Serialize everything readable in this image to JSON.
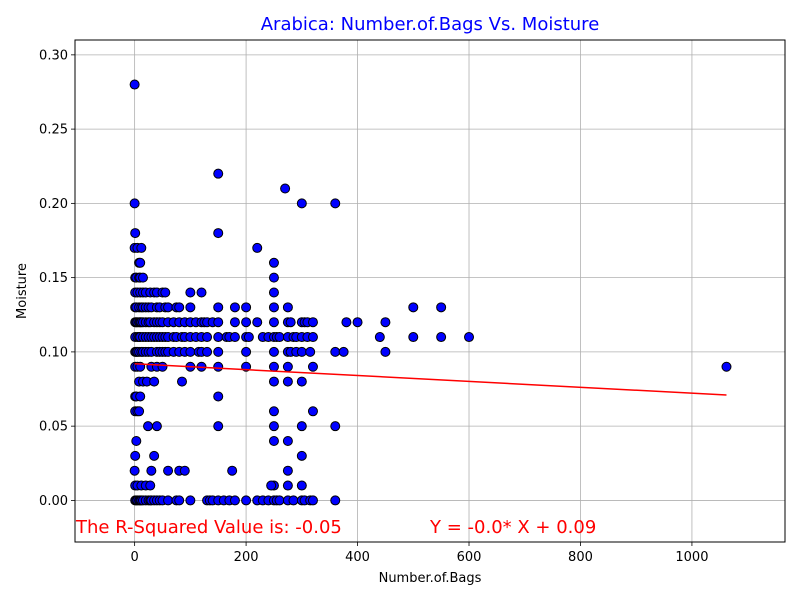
{
  "chart_data": {
    "type": "scatter",
    "title": "Arabica: Number.of.Bags Vs. Moisture",
    "xlabel": "Number.of.Bags",
    "ylabel": "Moisture",
    "xlim": [
      -107,
      1167
    ],
    "ylim": [
      -0.028,
      0.31
    ],
    "xticks": [
      0,
      200,
      400,
      600,
      800,
      1000
    ],
    "yticks": [
      0.0,
      0.05,
      0.1,
      0.15,
      0.2,
      0.25,
      0.3
    ],
    "xtick_labels": [
      "0",
      "200",
      "400",
      "600",
      "800",
      "1000"
    ],
    "ytick_labels": [
      "0.00",
      "0.05",
      "0.10",
      "0.15",
      "0.20",
      "0.25",
      "0.30"
    ],
    "grid": true,
    "colors": {
      "title": "#0000ff",
      "points": "#0000ff",
      "point_edge": "#000000",
      "regression": "#ff0000",
      "annotation": "#ff0000",
      "grid": "#b0b0b0"
    },
    "points": [
      [
        0,
        0.28
      ],
      [
        0,
        0.2
      ],
      [
        1,
        0.18
      ],
      [
        0,
        0.17
      ],
      [
        1,
        0.15
      ],
      [
        1,
        0.14
      ],
      [
        1,
        0.13
      ],
      [
        1,
        0.12
      ],
      [
        1,
        0.11
      ],
      [
        1,
        0.1
      ],
      [
        1,
        0.09
      ],
      [
        1,
        0.07
      ],
      [
        1,
        0.06
      ],
      [
        1,
        0.03
      ],
      [
        0,
        0.02
      ],
      [
        1,
        0.01
      ],
      [
        1,
        0.0
      ],
      [
        3,
        0.15
      ],
      [
        3,
        0.13
      ],
      [
        3,
        0.12
      ],
      [
        3,
        0.1
      ],
      [
        3,
        0.07
      ],
      [
        3,
        0.04
      ],
      [
        3,
        0.0
      ],
      [
        5,
        0.17
      ],
      [
        5,
        0.14
      ],
      [
        5,
        0.12
      ],
      [
        5,
        0.11
      ],
      [
        5,
        0.1
      ],
      [
        5,
        0.09
      ],
      [
        5,
        0.06
      ],
      [
        5,
        0.01
      ],
      [
        5,
        0.0
      ],
      [
        8,
        0.16
      ],
      [
        8,
        0.15
      ],
      [
        8,
        0.13
      ],
      [
        8,
        0.12
      ],
      [
        8,
        0.11
      ],
      [
        8,
        0.1
      ],
      [
        8,
        0.08
      ],
      [
        8,
        0.06
      ],
      [
        8,
        0.0
      ],
      [
        10,
        0.16
      ],
      [
        10,
        0.15
      ],
      [
        10,
        0.14
      ],
      [
        10,
        0.12
      ],
      [
        10,
        0.11
      ],
      [
        10,
        0.09
      ],
      [
        10,
        0.07
      ],
      [
        10,
        0.0
      ],
      [
        12,
        0.17
      ],
      [
        12,
        0.13
      ],
      [
        12,
        0.12
      ],
      [
        12,
        0.1
      ],
      [
        12,
        0.01
      ],
      [
        12,
        0.0
      ],
      [
        15,
        0.15
      ],
      [
        15,
        0.14
      ],
      [
        15,
        0.13
      ],
      [
        15,
        0.12
      ],
      [
        15,
        0.11
      ],
      [
        15,
        0.1
      ],
      [
        15,
        0.08
      ],
      [
        15,
        0.0
      ],
      [
        20,
        0.14
      ],
      [
        20,
        0.13
      ],
      [
        20,
        0.12
      ],
      [
        20,
        0.11
      ],
      [
        20,
        0.1
      ],
      [
        20,
        0.01
      ],
      [
        20,
        0.0
      ],
      [
        22,
        0.08
      ],
      [
        24,
        0.05
      ],
      [
        25,
        0.13
      ],
      [
        25,
        0.12
      ],
      [
        25,
        0.11
      ],
      [
        25,
        0.1
      ],
      [
        25,
        0.0
      ],
      [
        28,
        0.14
      ],
      [
        28,
        0.12
      ],
      [
        28,
        0.01
      ],
      [
        28,
        0.0
      ],
      [
        30,
        0.13
      ],
      [
        30,
        0.11
      ],
      [
        30,
        0.1
      ],
      [
        30,
        0.09
      ],
      [
        30,
        0.02
      ],
      [
        30,
        0.0
      ],
      [
        35,
        0.14
      ],
      [
        35,
        0.12
      ],
      [
        35,
        0.11
      ],
      [
        35,
        0.08
      ],
      [
        35,
        0.03
      ],
      [
        35,
        0.0
      ],
      [
        40,
        0.14
      ],
      [
        40,
        0.13
      ],
      [
        40,
        0.12
      ],
      [
        40,
        0.11
      ],
      [
        40,
        0.1
      ],
      [
        40,
        0.09
      ],
      [
        40,
        0.05
      ],
      [
        40,
        0.0
      ],
      [
        45,
        0.13
      ],
      [
        45,
        0.12
      ],
      [
        45,
        0.11
      ],
      [
        45,
        0.1
      ],
      [
        45,
        0.0
      ],
      [
        50,
        0.14
      ],
      [
        50,
        0.12
      ],
      [
        50,
        0.11
      ],
      [
        50,
        0.1
      ],
      [
        50,
        0.09
      ],
      [
        50,
        0.0
      ],
      [
        55,
        0.14
      ],
      [
        55,
        0.13
      ],
      [
        55,
        0.11
      ],
      [
        55,
        0.1
      ],
      [
        60,
        0.13
      ],
      [
        60,
        0.12
      ],
      [
        60,
        0.11
      ],
      [
        60,
        0.1
      ],
      [
        60,
        0.02
      ],
      [
        60,
        0.0
      ],
      [
        70,
        0.12
      ],
      [
        70,
        0.11
      ],
      [
        70,
        0.1
      ],
      [
        75,
        0.13
      ],
      [
        75,
        0.11
      ],
      [
        75,
        0.0
      ],
      [
        80,
        0.13
      ],
      [
        80,
        0.12
      ],
      [
        80,
        0.1
      ],
      [
        80,
        0.02
      ],
      [
        80,
        0.0
      ],
      [
        85,
        0.11
      ],
      [
        85,
        0.08
      ],
      [
        90,
        0.12
      ],
      [
        90,
        0.11
      ],
      [
        90,
        0.1
      ],
      [
        90,
        0.02
      ],
      [
        100,
        0.14
      ],
      [
        100,
        0.13
      ],
      [
        100,
        0.12
      ],
      [
        100,
        0.11
      ],
      [
        100,
        0.1
      ],
      [
        100,
        0.09
      ],
      [
        100,
        0.0
      ],
      [
        110,
        0.12
      ],
      [
        110,
        0.11
      ],
      [
        115,
        0.1
      ],
      [
        120,
        0.14
      ],
      [
        120,
        0.12
      ],
      [
        120,
        0.11
      ],
      [
        120,
        0.1
      ],
      [
        120,
        0.09
      ],
      [
        125,
        0.12
      ],
      [
        130,
        0.12
      ],
      [
        130,
        0.11
      ],
      [
        130,
        0.1
      ],
      [
        130,
        0.0
      ],
      [
        135,
        0.0
      ],
      [
        140,
        0.12
      ],
      [
        140,
        0.0
      ],
      [
        150,
        0.22
      ],
      [
        150,
        0.18
      ],
      [
        150,
        0.13
      ],
      [
        150,
        0.12
      ],
      [
        150,
        0.11
      ],
      [
        150,
        0.1
      ],
      [
        150,
        0.09
      ],
      [
        150,
        0.07
      ],
      [
        150,
        0.05
      ],
      [
        150,
        0.0
      ],
      [
        160,
        0.0
      ],
      [
        165,
        0.11
      ],
      [
        170,
        0.11
      ],
      [
        170,
        0.0
      ],
      [
        175,
        0.02
      ],
      [
        180,
        0.13
      ],
      [
        180,
        0.12
      ],
      [
        180,
        0.11
      ],
      [
        180,
        0.0
      ],
      [
        200,
        0.13
      ],
      [
        200,
        0.12
      ],
      [
        200,
        0.11
      ],
      [
        200,
        0.1
      ],
      [
        200,
        0.09
      ],
      [
        200,
        0.0
      ],
      [
        205,
        0.11
      ],
      [
        220,
        0.17
      ],
      [
        220,
        0.12
      ],
      [
        220,
        0.0
      ],
      [
        230,
        0.11
      ],
      [
        230,
        0.0
      ],
      [
        240,
        0.11
      ],
      [
        240,
        0.0
      ],
      [
        250,
        0.16
      ],
      [
        250,
        0.15
      ],
      [
        250,
        0.14
      ],
      [
        250,
        0.13
      ],
      [
        250,
        0.12
      ],
      [
        250,
        0.11
      ],
      [
        250,
        0.1
      ],
      [
        250,
        0.09
      ],
      [
        250,
        0.08
      ],
      [
        250,
        0.06
      ],
      [
        250,
        0.05
      ],
      [
        250,
        0.04
      ],
      [
        250,
        0.01
      ],
      [
        250,
        0.0
      ],
      [
        245,
        0.01
      ],
      [
        255,
        0.11
      ],
      [
        255,
        0.0
      ],
      [
        260,
        0.11
      ],
      [
        260,
        0.0
      ],
      [
        270,
        0.21
      ],
      [
        275,
        0.13
      ],
      [
        275,
        0.12
      ],
      [
        275,
        0.11
      ],
      [
        275,
        0.1
      ],
      [
        275,
        0.09
      ],
      [
        275,
        0.08
      ],
      [
        275,
        0.04
      ],
      [
        275,
        0.02
      ],
      [
        275,
        0.01
      ],
      [
        275,
        0.0
      ],
      [
        280,
        0.12
      ],
      [
        280,
        0.1
      ],
      [
        285,
        0.11
      ],
      [
        285,
        0.0
      ],
      [
        290,
        0.11
      ],
      [
        290,
        0.1
      ],
      [
        300,
        0.2
      ],
      [
        300,
        0.12
      ],
      [
        300,
        0.11
      ],
      [
        300,
        0.1
      ],
      [
        300,
        0.08
      ],
      [
        300,
        0.05
      ],
      [
        300,
        0.03
      ],
      [
        300,
        0.01
      ],
      [
        300,
        0.0
      ],
      [
        305,
        0.12
      ],
      [
        305,
        0.0
      ],
      [
        310,
        0.12
      ],
      [
        310,
        0.11
      ],
      [
        315,
        0.1
      ],
      [
        315,
        0.0
      ],
      [
        320,
        0.12
      ],
      [
        320,
        0.11
      ],
      [
        320,
        0.09
      ],
      [
        320,
        0.06
      ],
      [
        320,
        0.0
      ],
      [
        360,
        0.2
      ],
      [
        360,
        0.1
      ],
      [
        360,
        0.05
      ],
      [
        360,
        0.0
      ],
      [
        375,
        0.1
      ],
      [
        380,
        0.12
      ],
      [
        400,
        0.12
      ],
      [
        440,
        0.11
      ],
      [
        450,
        0.12
      ],
      [
        450,
        0.1
      ],
      [
        500,
        0.13
      ],
      [
        500,
        0.11
      ],
      [
        550,
        0.13
      ],
      [
        550,
        0.11
      ],
      [
        600,
        0.11
      ],
      [
        1062,
        0.09
      ]
    ],
    "regression": {
      "x": [
        0,
        1062
      ],
      "y": [
        0.092,
        0.071
      ]
    },
    "annotations": {
      "r_squared": "The R-Squared Value is: -0.05",
      "equation": "Y = -0.0* X + 0.09"
    }
  }
}
